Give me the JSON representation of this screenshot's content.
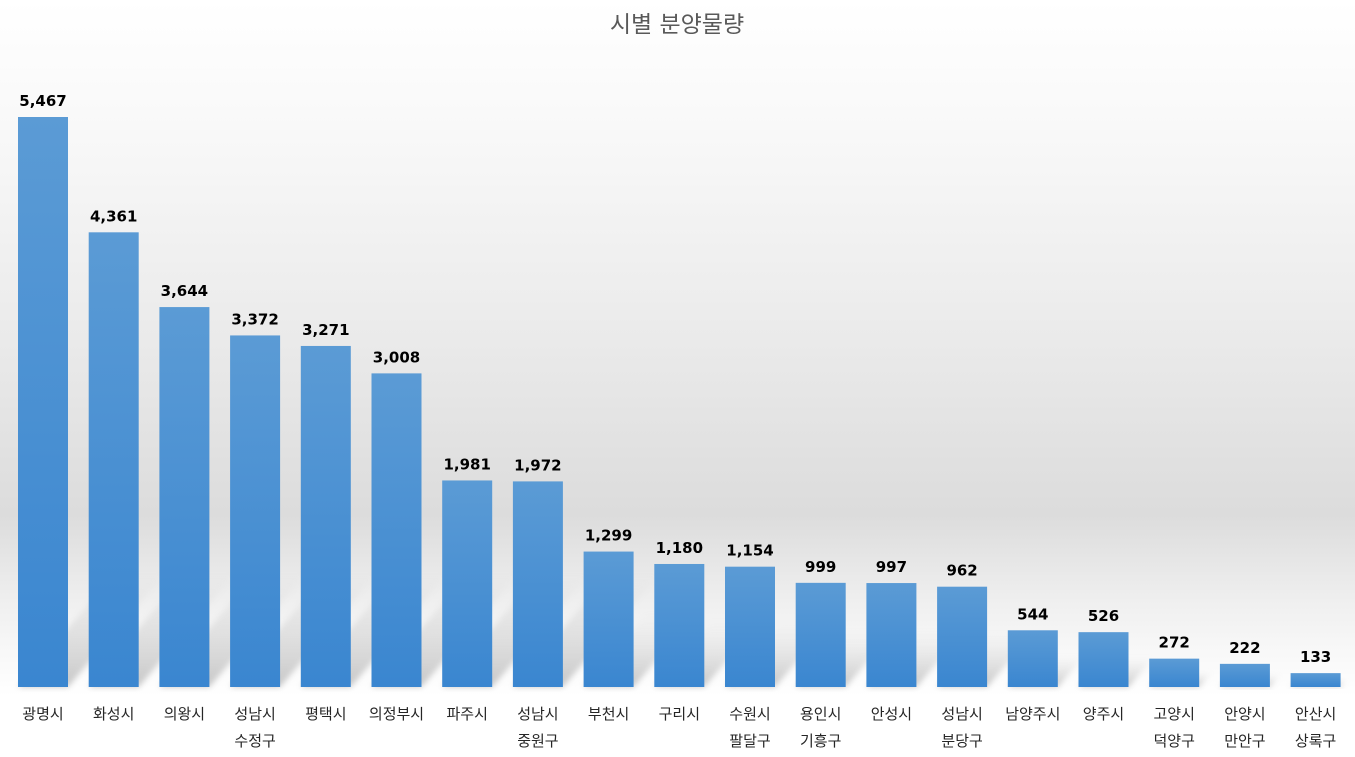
{
  "chart_data": {
    "type": "bar",
    "title": "시별 분양물량",
    "xlabel": "",
    "ylabel": "",
    "categories": [
      [
        "광명시"
      ],
      [
        "화성시"
      ],
      [
        "의왕시"
      ],
      [
        "성남시",
        "수정구"
      ],
      [
        "평택시"
      ],
      [
        "의정부시"
      ],
      [
        "파주시"
      ],
      [
        "성남시",
        "중원구"
      ],
      [
        "부천시"
      ],
      [
        "구리시"
      ],
      [
        "수원시",
        "팔달구"
      ],
      [
        "용인시",
        "기흥구"
      ],
      [
        "안성시"
      ],
      [
        "성남시",
        "분당구"
      ],
      [
        "남양주시"
      ],
      [
        "양주시"
      ],
      [
        "고양시",
        "덕양구"
      ],
      [
        "안양시",
        "만안구"
      ],
      [
        "안산시",
        "상록구"
      ]
    ],
    "values": [
      5467,
      4361,
      3644,
      3372,
      3271,
      3008,
      1981,
      1972,
      1299,
      1180,
      1154,
      999,
      997,
      962,
      544,
      526,
      272,
      222,
      133
    ],
    "value_labels": [
      "5,467",
      "4,361",
      "3,644",
      "3,372",
      "3,271",
      "3,008",
      "1,981",
      "1,972",
      "1,299",
      "1,180",
      "1,154",
      "999",
      "997",
      "962",
      "544",
      "526",
      "272",
      "222",
      "133"
    ],
    "ylim": [
      0,
      5467
    ],
    "grid": false,
    "legend": "none",
    "colors": {
      "bar_top": "#5B9BD5",
      "bar_bottom": "#3A86D0",
      "shadow": "#8c8c8c",
      "title": "#595959",
      "data_label": "#000000",
      "tick_label": "#262626"
    }
  }
}
